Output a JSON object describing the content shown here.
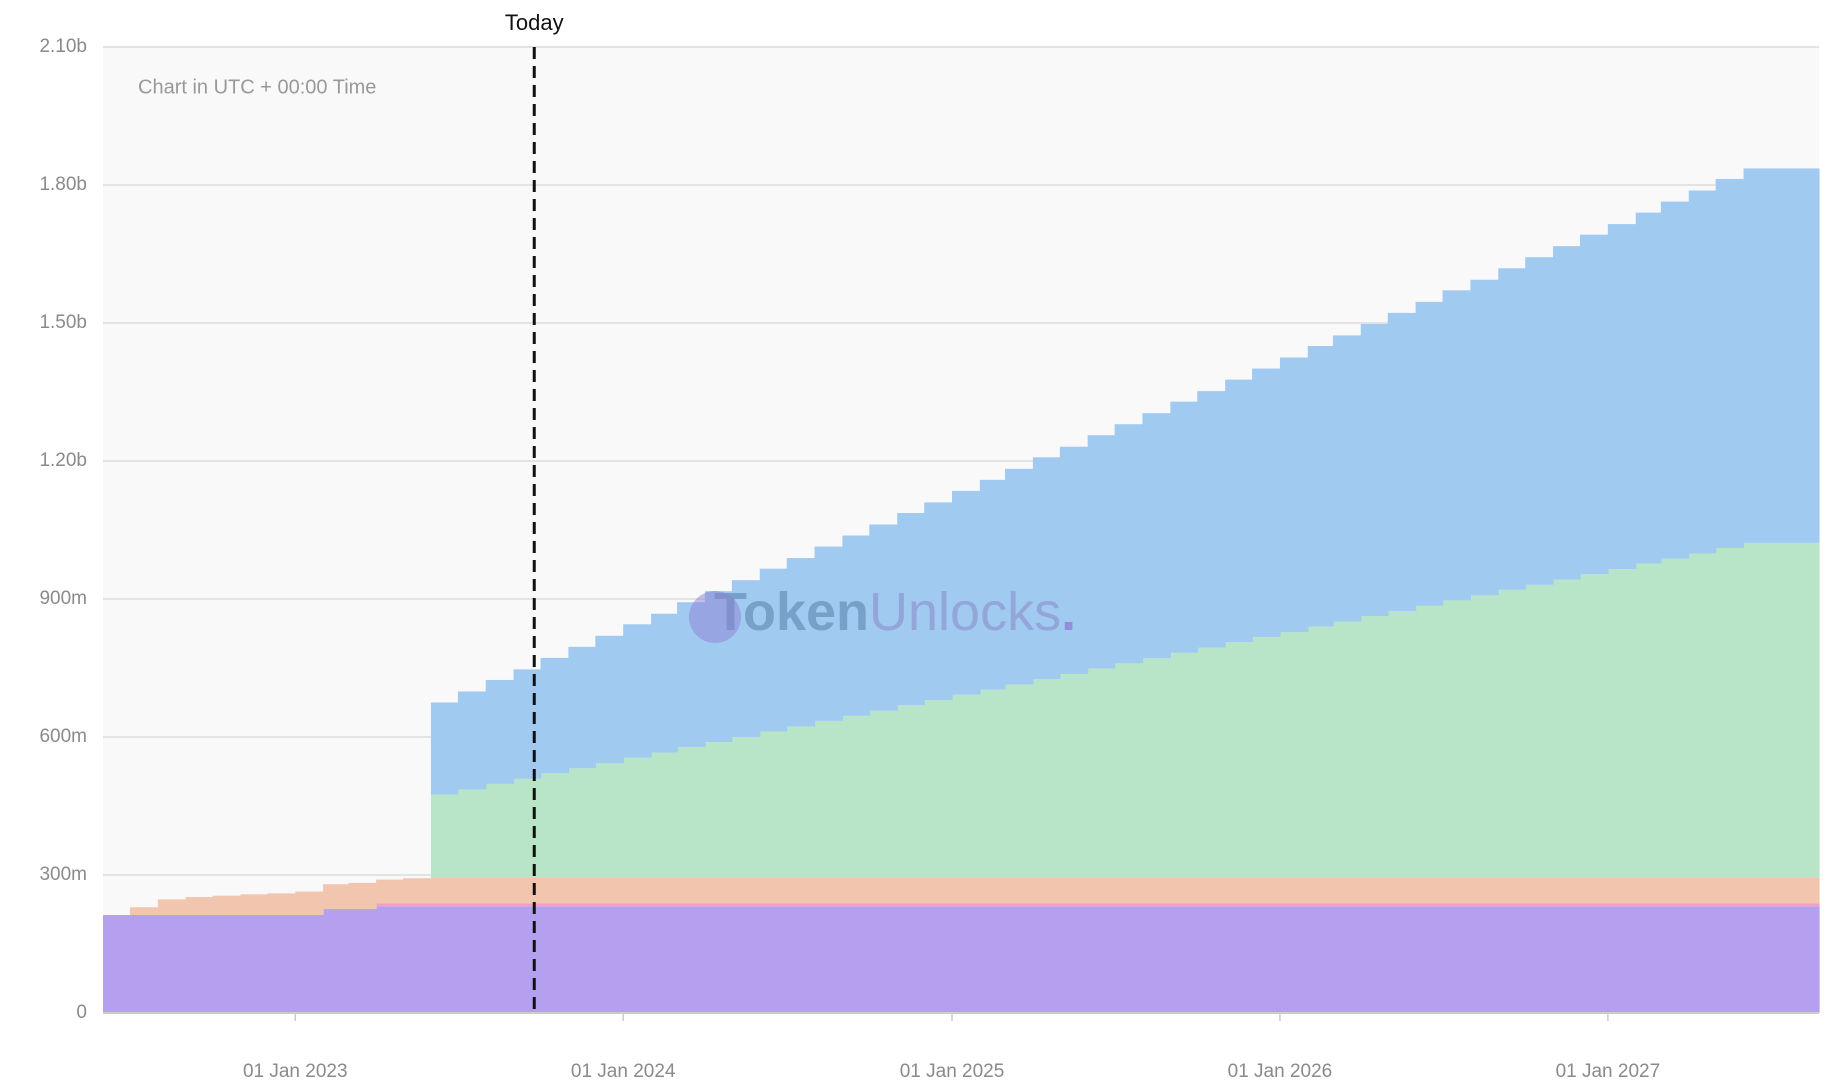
{
  "chart_data": {
    "type": "stepped-area",
    "stacked": true,
    "note": "Chart in UTC + 00:00 Time",
    "watermark": [
      "Token",
      "Unlocks",
      "."
    ],
    "annotations": [
      {
        "label": "Today",
        "x": "2023-09-24"
      }
    ],
    "xlim": [
      "2022-06-01",
      "2027-08-24"
    ],
    "xticks": [
      {
        "value": "2023-01-01",
        "label": "01 Jan 2023"
      },
      {
        "value": "2024-01-01",
        "label": "01 Jan 2024"
      },
      {
        "value": "2025-01-01",
        "label": "01 Jan 2025"
      },
      {
        "value": "2026-01-01",
        "label": "01 Jan 2026"
      },
      {
        "value": "2027-01-01",
        "label": "01 Jan 2027"
      }
    ],
    "ylim": [
      0,
      2100
    ],
    "yticks": [
      0,
      {
        "value": 300,
        "label": "300m"
      },
      {
        "value": 600,
        "label": "600m"
      },
      {
        "value": 900,
        "label": "900m"
      },
      {
        "value": 1200,
        "label": "1.20b"
      },
      {
        "value": 1500,
        "label": "1.50b"
      },
      {
        "value": 1800,
        "label": "1.80b"
      },
      {
        "value": 2100,
        "label": "2.10b"
      }
    ],
    "grid": true,
    "x": [
      "2022-06-01",
      "2022-07-01",
      "2022-08-01",
      "2022-09-01",
      "2022-10-01",
      "2022-11-01",
      "2022-12-01",
      "2023-01-01",
      "2023-02-01",
      "2023-03-01",
      "2023-04-01",
      "2023-05-01",
      "2023-06-01",
      "2023-07-01",
      "2023-08-01",
      "2023-09-01",
      "2023-10-01",
      "2023-11-01",
      "2023-12-01",
      "2024-01-01",
      "2024-02-01",
      "2024-03-01",
      "2024-04-01",
      "2024-05-01",
      "2024-06-01",
      "2024-07-01",
      "2024-08-01",
      "2024-09-01",
      "2024-10-01",
      "2024-11-01",
      "2024-12-01",
      "2025-01-01",
      "2025-02-01",
      "2025-03-01",
      "2025-04-01",
      "2025-05-01",
      "2025-06-01",
      "2025-07-01",
      "2025-08-01",
      "2025-09-01",
      "2025-10-01",
      "2025-11-01",
      "2025-12-01",
      "2026-01-01",
      "2026-02-01",
      "2026-03-01",
      "2026-04-01",
      "2026-05-01",
      "2026-06-01",
      "2026-07-01",
      "2026-08-01",
      "2026-09-01",
      "2026-10-01",
      "2026-11-01",
      "2026-12-01",
      "2027-01-01",
      "2027-02-01",
      "2027-03-01",
      "2027-04-01",
      "2027-05-01",
      "2027-06-01"
    ],
    "series": [
      {
        "color": "#b5a0f0",
        "values": [
          213,
          213,
          213,
          213,
          213,
          213,
          213,
          213,
          226,
          226,
          232,
          232,
          232,
          232,
          232,
          232,
          232,
          232,
          232,
          232,
          232,
          232,
          232,
          232,
          232,
          232,
          232,
          232,
          232,
          232,
          232,
          232,
          232,
          232,
          232,
          232,
          232,
          232,
          232,
          232,
          232,
          232,
          232,
          232,
          232,
          232,
          232,
          232,
          232,
          232,
          232,
          232,
          232,
          232,
          232,
          232,
          232,
          232,
          232,
          232,
          232
        ]
      },
      {
        "color": "#f0a0c4",
        "values": [
          0,
          0,
          0,
          0,
          0,
          0,
          0,
          0,
          0,
          0,
          6,
          6,
          6,
          6,
          6,
          6,
          6,
          6,
          6,
          6,
          6,
          6,
          6,
          6,
          6,
          6,
          6,
          6,
          6,
          6,
          6,
          6,
          6,
          6,
          6,
          6,
          6,
          6,
          6,
          6,
          6,
          6,
          6,
          6,
          6,
          6,
          6,
          6,
          6,
          6,
          6,
          6,
          6,
          6,
          6,
          6,
          6,
          6,
          6,
          6,
          6
        ]
      },
      {
        "color": "#f2c6ae",
        "values": [
          0,
          17,
          34,
          39,
          42,
          45,
          47,
          51,
          54,
          57,
          52,
          55,
          57,
          57,
          57,
          57,
          57,
          57,
          57,
          57,
          57,
          57,
          57,
          57,
          57,
          57,
          57,
          57,
          57,
          57,
          57,
          57,
          57,
          57,
          57,
          57,
          57,
          57,
          57,
          57,
          57,
          57,
          57,
          57,
          57,
          57,
          57,
          57,
          57,
          57,
          57,
          57,
          57,
          57,
          57,
          57,
          57,
          57,
          57,
          57,
          57
        ]
      },
      {
        "color": "#b8e4c8",
        "values": [
          0,
          0,
          0,
          0,
          0,
          0,
          0,
          0,
          0,
          0,
          0,
          0,
          180,
          191,
          203,
          214,
          226,
          237,
          248,
          260,
          271,
          283,
          294,
          305,
          317,
          328,
          340,
          351,
          362,
          374,
          385,
          397,
          408,
          419,
          431,
          442,
          454,
          465,
          476,
          488,
          499,
          511,
          522,
          533,
          545,
          556,
          568,
          579,
          590,
          602,
          613,
          625,
          636,
          647,
          659,
          670,
          682,
          693,
          704,
          716,
          727
        ]
      },
      {
        "color": "#a0caf0",
        "values": [
          0,
          0,
          0,
          0,
          0,
          0,
          0,
          0,
          0,
          0,
          0,
          0,
          200,
          213,
          226,
          238,
          251,
          264,
          277,
          290,
          302,
          315,
          328,
          341,
          354,
          366,
          379,
          392,
          405,
          418,
          430,
          443,
          456,
          469,
          482,
          494,
          507,
          520,
          533,
          546,
          558,
          571,
          584,
          597,
          610,
          622,
          635,
          648,
          661,
          674,
          686,
          699,
          712,
          725,
          738,
          750,
          763,
          776,
          789,
          802,
          814
        ]
      }
    ]
  }
}
